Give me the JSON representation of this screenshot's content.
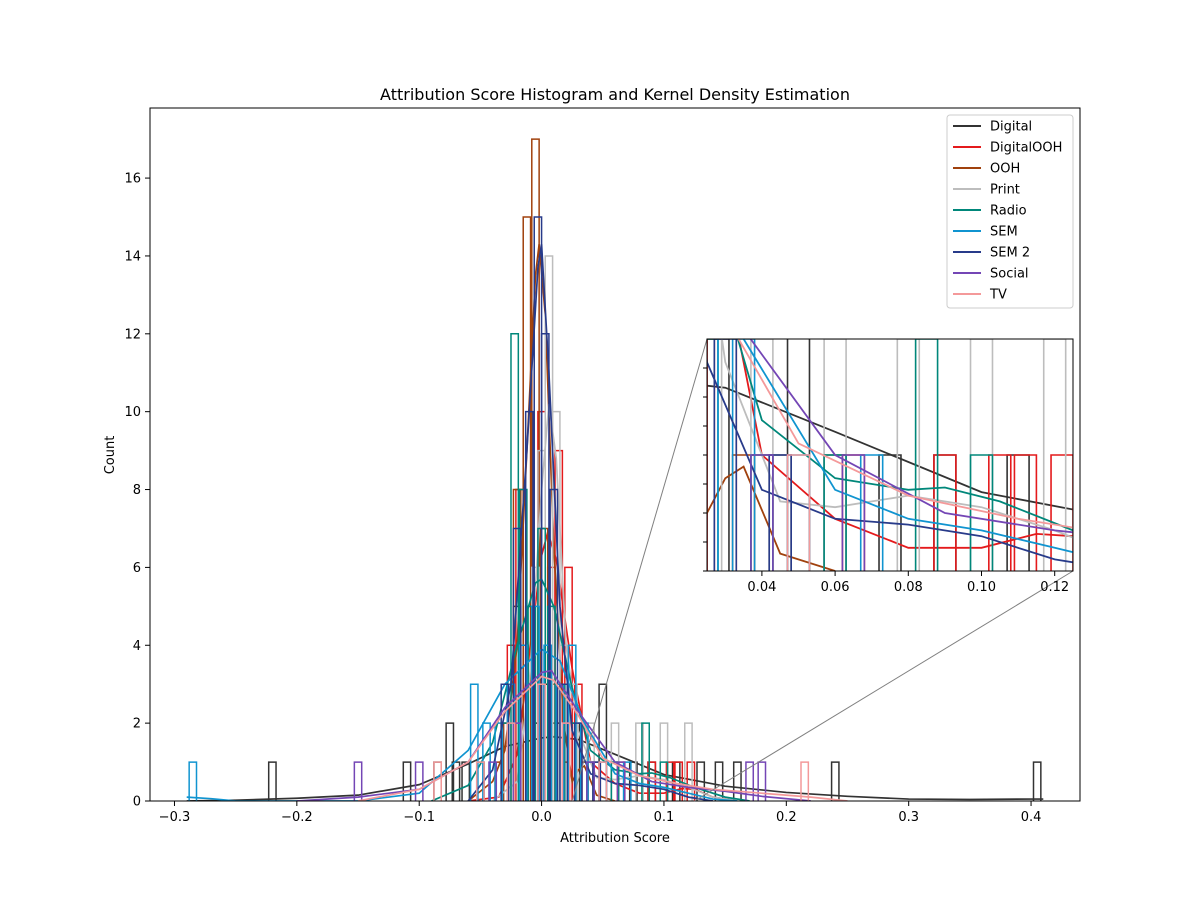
{
  "chart_data": {
    "type": "histogram",
    "title": "Attribution Score Histogram and Kernel Density Estimation",
    "xlabel": "Attribution Score",
    "ylabel": "Count",
    "xlim": [
      -0.32,
      0.44
    ],
    "ylim": [
      0,
      17.8
    ],
    "x_ticks": [
      -0.3,
      -0.2,
      -0.1,
      0.0,
      0.1,
      0.2,
      0.3,
      0.4
    ],
    "x_tick_labels": [
      "−0.3",
      "−0.2",
      "−0.1",
      "0.0",
      "0.1",
      "0.2",
      "0.3",
      "0.4"
    ],
    "y_ticks": [
      0,
      2,
      4,
      6,
      8,
      10,
      12,
      14,
      16
    ],
    "y_tick_labels": [
      "0",
      "2",
      "4",
      "6",
      "8",
      "10",
      "12",
      "14",
      "16"
    ],
    "grid": false,
    "legend_position": "top-right",
    "series": [
      {
        "name": "Digital",
        "color": "#333333",
        "hist": [
          [
            -0.22,
            1
          ],
          [
            -0.11,
            1
          ],
          [
            -0.085,
            1
          ],
          [
            -0.075,
            2
          ],
          [
            -0.07,
            1
          ],
          [
            -0.062,
            1
          ],
          [
            -0.05,
            1
          ],
          [
            -0.03,
            2
          ],
          [
            -0.02,
            5
          ],
          [
            -0.014,
            4
          ],
          [
            -0.005,
            2
          ],
          [
            0.005,
            3
          ],
          [
            0.012,
            2
          ],
          [
            0.02,
            3
          ],
          [
            0.028,
            2
          ],
          [
            0.045,
            1
          ],
          [
            0.05,
            3
          ],
          [
            0.06,
            1
          ],
          [
            0.075,
            1
          ],
          [
            0.09,
            1
          ],
          [
            0.11,
            1
          ],
          [
            0.13,
            1
          ],
          [
            0.145,
            1
          ],
          [
            0.16,
            1
          ],
          [
            0.24,
            1
          ],
          [
            0.405,
            1
          ]
        ],
        "kde": [
          [
            -0.29,
            0.0
          ],
          [
            -0.25,
            0.02
          ],
          [
            -0.2,
            0.07
          ],
          [
            -0.15,
            0.15
          ],
          [
            -0.1,
            0.42
          ],
          [
            -0.06,
            0.95
          ],
          [
            -0.03,
            1.4
          ],
          [
            0.0,
            1.62
          ],
          [
            0.01,
            1.65
          ],
          [
            0.03,
            1.58
          ],
          [
            0.06,
            1.2
          ],
          [
            0.1,
            0.68
          ],
          [
            0.15,
            0.38
          ],
          [
            0.2,
            0.22
          ],
          [
            0.25,
            0.12
          ],
          [
            0.3,
            0.05
          ],
          [
            0.35,
            0.04
          ],
          [
            0.4,
            0.05
          ],
          [
            0.41,
            0.05
          ]
        ]
      },
      {
        "name": "DigitalOOH",
        "color": "#e41a1c",
        "hist": [
          [
            -0.025,
            4
          ],
          [
            -0.018,
            8
          ],
          [
            -0.01,
            5
          ],
          [
            0.0,
            10
          ],
          [
            0.008,
            6
          ],
          [
            0.014,
            9
          ],
          [
            0.022,
            6
          ],
          [
            0.03,
            3
          ],
          [
            0.04,
            1
          ],
          [
            0.065,
            1
          ],
          [
            0.09,
            1
          ],
          [
            0.105,
            1
          ],
          [
            0.112,
            1
          ],
          [
            0.122,
            1
          ]
        ],
        "kde": [
          [
            -0.06,
            0.0
          ],
          [
            -0.035,
            0.1
          ],
          [
            -0.02,
            1.2
          ],
          [
            -0.01,
            3.8
          ],
          [
            0.0,
            6.3
          ],
          [
            0.005,
            6.9
          ],
          [
            0.012,
            6.2
          ],
          [
            0.025,
            3.4
          ],
          [
            0.04,
            1.0
          ],
          [
            0.06,
            0.45
          ],
          [
            0.08,
            0.2
          ],
          [
            0.1,
            0.2
          ],
          [
            0.115,
            0.32
          ],
          [
            0.125,
            0.3
          ],
          [
            0.14,
            0.1
          ],
          [
            0.16,
            0.0
          ]
        ]
      },
      {
        "name": "OOH",
        "color": "#a0410d",
        "hist": [
          [
            -0.035,
            1
          ],
          [
            -0.028,
            2
          ],
          [
            -0.02,
            8
          ],
          [
            -0.012,
            15
          ],
          [
            -0.005,
            17
          ],
          [
            0.002,
            7
          ],
          [
            0.01,
            3
          ],
          [
            0.02,
            1
          ],
          [
            0.035,
            1
          ]
        ],
        "kde": [
          [
            -0.06,
            0.0
          ],
          [
            -0.04,
            0.5
          ],
          [
            -0.03,
            1.3
          ],
          [
            -0.02,
            4.0
          ],
          [
            -0.012,
            9.0
          ],
          [
            -0.005,
            13.5
          ],
          [
            -0.002,
            14.3
          ],
          [
            0.003,
            12.5
          ],
          [
            0.01,
            6.5
          ],
          [
            0.018,
            2.0
          ],
          [
            0.025,
            0.5
          ],
          [
            0.03,
            0.8
          ],
          [
            0.035,
            0.9
          ],
          [
            0.045,
            0.15
          ],
          [
            0.06,
            0.0
          ]
        ]
      },
      {
        "name": "Print",
        "color": "#bdbdbd",
        "hist": [
          [
            -0.005,
            6
          ],
          [
            0.0,
            9
          ],
          [
            0.006,
            14
          ],
          [
            0.012,
            10
          ],
          [
            0.018,
            4
          ],
          [
            0.026,
            3
          ],
          [
            0.04,
            2
          ],
          [
            0.06,
            2
          ],
          [
            0.08,
            2
          ],
          [
            0.1,
            2
          ],
          [
            0.12,
            2
          ]
        ],
        "kde": [
          [
            -0.04,
            0.0
          ],
          [
            -0.02,
            0.5
          ],
          [
            -0.01,
            3.0
          ],
          [
            0.0,
            8.0
          ],
          [
            0.006,
            10.2
          ],
          [
            0.012,
            8.8
          ],
          [
            0.02,
            4.0
          ],
          [
            0.03,
            1.8
          ],
          [
            0.045,
            0.6
          ],
          [
            0.06,
            0.55
          ],
          [
            0.08,
            0.65
          ],
          [
            0.1,
            0.55
          ],
          [
            0.12,
            0.35
          ],
          [
            0.14,
            0.1
          ],
          [
            0.16,
            0.0
          ]
        ]
      },
      {
        "name": "Radio",
        "color": "#00877a",
        "hist": [
          [
            -0.03,
            2
          ],
          [
            -0.022,
            12
          ],
          [
            -0.015,
            8
          ],
          [
            -0.008,
            5
          ],
          [
            0.0,
            7
          ],
          [
            0.008,
            5
          ],
          [
            0.016,
            3
          ],
          [
            0.025,
            2
          ],
          [
            0.04,
            1
          ],
          [
            0.06,
            1
          ],
          [
            0.085,
            2
          ],
          [
            0.1,
            1
          ]
        ],
        "kde": [
          [
            -0.09,
            0.0
          ],
          [
            -0.06,
            0.4
          ],
          [
            -0.04,
            1.5
          ],
          [
            -0.02,
            4.0
          ],
          [
            -0.005,
            5.6
          ],
          [
            0.0,
            5.7
          ],
          [
            0.01,
            5.0
          ],
          [
            0.025,
            2.9
          ],
          [
            0.04,
            1.3
          ],
          [
            0.06,
            0.8
          ],
          [
            0.08,
            0.7
          ],
          [
            0.09,
            0.72
          ],
          [
            0.105,
            0.6
          ],
          [
            0.125,
            0.35
          ],
          [
            0.15,
            0.1
          ],
          [
            0.17,
            0.0
          ]
        ]
      },
      {
        "name": "SEM",
        "color": "#1094d0",
        "hist": [
          [
            -0.285,
            1
          ],
          [
            -0.055,
            3
          ],
          [
            -0.045,
            2
          ],
          [
            -0.035,
            2
          ],
          [
            -0.025,
            3
          ],
          [
            -0.015,
            4
          ],
          [
            -0.005,
            5
          ],
          [
            0.005,
            4
          ],
          [
            0.015,
            3
          ],
          [
            0.025,
            4
          ],
          [
            0.035,
            2
          ],
          [
            0.05,
            1
          ],
          [
            0.07,
            1
          ]
        ],
        "kde": [
          [
            -0.29,
            0.1
          ],
          [
            -0.27,
            0.06
          ],
          [
            -0.25,
            0.0
          ],
          [
            -0.15,
            0.0
          ],
          [
            -0.1,
            0.2
          ],
          [
            -0.06,
            1.3
          ],
          [
            -0.03,
            3.0
          ],
          [
            0.0,
            3.9
          ],
          [
            0.015,
            3.6
          ],
          [
            0.035,
            2.0
          ],
          [
            0.06,
            0.7
          ],
          [
            0.08,
            0.45
          ],
          [
            0.1,
            0.35
          ],
          [
            0.12,
            0.2
          ],
          [
            0.14,
            0.05
          ],
          [
            0.16,
            0.0
          ]
        ]
      },
      {
        "name": "SEM 2",
        "color": "#283b8a",
        "hist": [
          [
            -0.03,
            3
          ],
          [
            -0.02,
            7
          ],
          [
            -0.01,
            10
          ],
          [
            -0.003,
            15
          ],
          [
            0.003,
            12
          ],
          [
            0.01,
            8
          ],
          [
            0.018,
            3
          ],
          [
            0.03,
            2
          ],
          [
            0.045,
            1
          ]
        ],
        "kde": [
          [
            -0.06,
            0.0
          ],
          [
            -0.04,
            0.8
          ],
          [
            -0.025,
            3.0
          ],
          [
            -0.012,
            9.0
          ],
          [
            -0.003,
            13.7
          ],
          [
            0.0,
            14.3
          ],
          [
            0.006,
            11.0
          ],
          [
            0.015,
            5.0
          ],
          [
            0.025,
            1.8
          ],
          [
            0.04,
            0.7
          ],
          [
            0.06,
            0.45
          ],
          [
            0.08,
            0.4
          ],
          [
            0.1,
            0.3
          ],
          [
            0.12,
            0.1
          ],
          [
            0.14,
            0.0
          ]
        ]
      },
      {
        "name": "Social",
        "color": "#7446b5",
        "hist": [
          [
            -0.15,
            1
          ],
          [
            -0.1,
            1
          ],
          [
            -0.04,
            1
          ],
          [
            -0.02,
            2
          ],
          [
            0.0,
            3
          ],
          [
            0.02,
            2
          ],
          [
            0.04,
            1
          ],
          [
            0.065,
            1
          ],
          [
            0.17,
            1
          ],
          [
            0.18,
            1
          ]
        ],
        "kde": [
          [
            -0.2,
            0.0
          ],
          [
            -0.15,
            0.1
          ],
          [
            -0.1,
            0.3
          ],
          [
            -0.06,
            1.0
          ],
          [
            -0.03,
            2.4
          ],
          [
            0.0,
            3.3
          ],
          [
            0.008,
            3.35
          ],
          [
            0.03,
            2.3
          ],
          [
            0.06,
            1.0
          ],
          [
            0.09,
            0.5
          ],
          [
            0.12,
            0.35
          ],
          [
            0.15,
            0.25
          ],
          [
            0.18,
            0.12
          ],
          [
            0.22,
            0.0
          ]
        ]
      },
      {
        "name": "TV",
        "color": "#f4999a",
        "hist": [
          [
            -0.085,
            1
          ],
          [
            -0.05,
            1
          ],
          [
            -0.025,
            2
          ],
          [
            0.0,
            3
          ],
          [
            0.02,
            2
          ],
          [
            0.05,
            1
          ],
          [
            0.215,
            1
          ]
        ],
        "kde": [
          [
            -0.15,
            0.0
          ],
          [
            -0.1,
            0.3
          ],
          [
            -0.06,
            1.0
          ],
          [
            -0.03,
            2.3
          ],
          [
            0.0,
            3.2
          ],
          [
            0.01,
            3.1
          ],
          [
            0.03,
            2.2
          ],
          [
            0.05,
            1.1
          ],
          [
            0.08,
            0.65
          ],
          [
            0.11,
            0.45
          ],
          [
            0.14,
            0.3
          ],
          [
            0.18,
            0.2
          ],
          [
            0.22,
            0.1
          ],
          [
            0.25,
            0.0
          ]
        ]
      }
    ],
    "inset": {
      "xlim": [
        0.025,
        0.125
      ],
      "x_ticks": [
        0.04,
        0.06,
        0.08,
        0.1,
        0.12
      ],
      "x_tick_labels": [
        "0.04",
        "0.06",
        "0.08",
        "0.10",
        "0.12"
      ],
      "ylim": [
        0,
        2
      ],
      "y_tick_count": 8
    }
  }
}
